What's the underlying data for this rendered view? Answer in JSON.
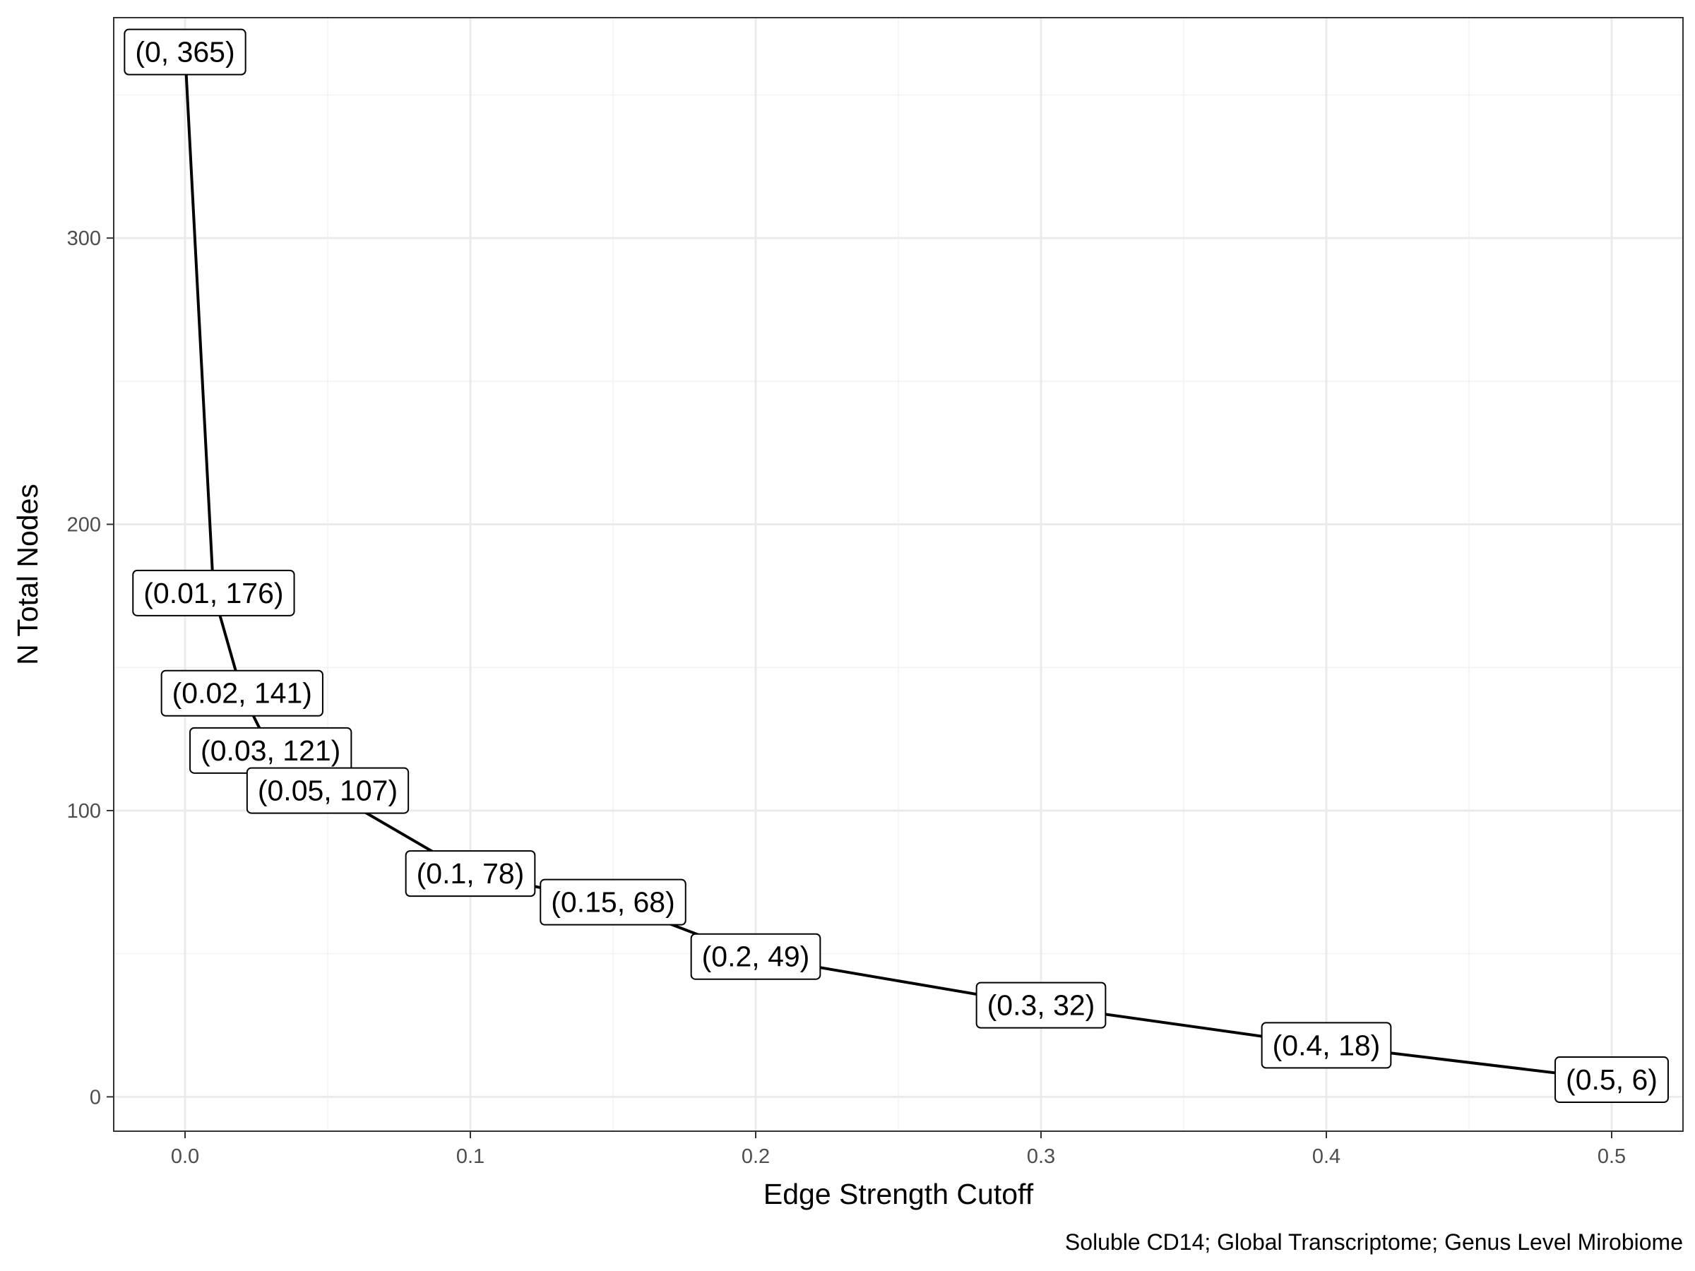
{
  "chart_data": {
    "type": "line",
    "xlabel": "Edge Strength Cutoff",
    "ylabel": "N Total Nodes",
    "caption": "Soluble CD14; Global Transcriptome; Genus Level Mirobiome",
    "xlim": [
      -0.025,
      0.525
    ],
    "ylim": [
      -12,
      377
    ],
    "x_ticks": [
      0.0,
      0.1,
      0.2,
      0.3,
      0.4,
      0.5
    ],
    "x_tick_labels": [
      "0.0",
      "0.1",
      "0.2",
      "0.3",
      "0.4",
      "0.5"
    ],
    "y_ticks": [
      0,
      100,
      200,
      300
    ],
    "y_tick_labels": [
      "0",
      "100",
      "200",
      "300"
    ],
    "grid": true,
    "series": [
      {
        "x": [
          0,
          0.01,
          0.02,
          0.03,
          0.05,
          0.1,
          0.15,
          0.2,
          0.3,
          0.4,
          0.5
        ],
        "y": [
          365,
          176,
          141,
          121,
          107,
          78,
          68,
          49,
          32,
          18,
          6
        ]
      }
    ],
    "point_labels": [
      "(0, 365)",
      "(0.01, 176)",
      "(0.02, 141)",
      "(0.03, 121)",
      "(0.05, 107)",
      "(0.1, 78)",
      "(0.15, 68)",
      "(0.2, 49)",
      "(0.3, 32)",
      "(0.4, 18)",
      "(0.5, 6)"
    ]
  }
}
